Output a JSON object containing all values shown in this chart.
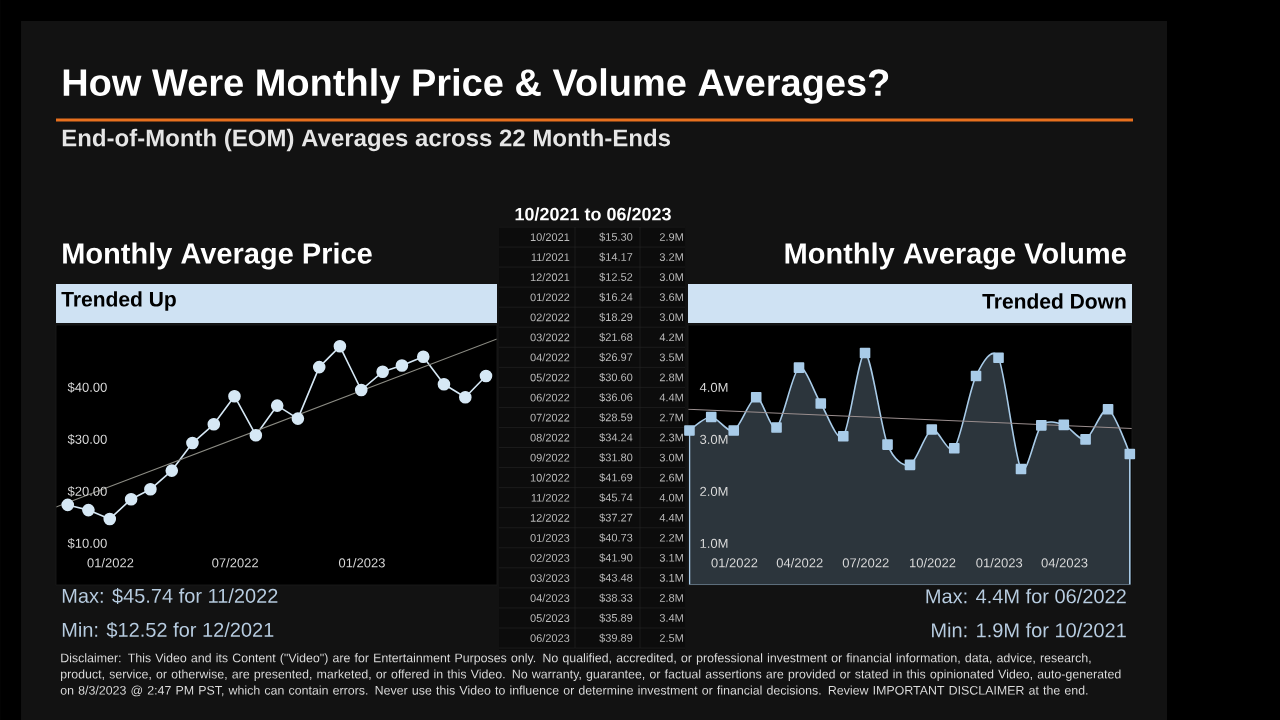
{
  "chart_data": [
    {
      "type": "other",
      "title": "How Were Monthly Price & Volume Averages?",
      "subtitle": "End-of-Month (EOM) Averages across 22 Month-Ends",
      "annotations": [
        "Disclaimer: This Video and its Content (\"Video\") are for Entertainment Purposes only. No qualified, accredited, or professional investment or financial information, data, advice, research, product, service, or otherwise, are presented, marketed, or offered in this Video. No warranty, guarantee, or factual assertions are provided or stated in this opinionated Video, auto-generated on 8/3/2023 @ 2:47 PM PST, which can contain errors. Never use this Video to influence or determine investment or financial decisions. Review IMPORTANT DISCLAIMER at the end."
      ]
    },
    {
      "type": "line",
      "title": "Monthly Average Price",
      "subtitle": "Trended Up",
      "marker": "circle",
      "x": [
        "2021-10-31",
        "2021-11-30",
        "2021-12-31",
        "2022-01-31",
        "2022-02-28",
        "2022-03-31",
        "2022-04-30",
        "2022-05-31",
        "2022-06-30",
        "2022-07-31",
        "2022-08-31",
        "2022-09-30",
        "2022-10-31",
        "2022-11-30",
        "2022-12-31",
        "2023-01-31",
        "2023-02-28",
        "2023-03-31",
        "2023-04-30",
        "2023-05-31",
        "2023-06-30"
      ],
      "series": [
        {
          "color": "#d6e8f5",
          "values": [
            17.4,
            16.4,
            14.7,
            18.5,
            20.4,
            24.0,
            29.3,
            32.9,
            38.3,
            30.8,
            36.5,
            34.0,
            43.9,
            47.9,
            39.5,
            43.0,
            44.2,
            45.9,
            40.6,
            38.1,
            42.2
          ]
        },
        {
          "type": "line",
          "marker": "none",
          "color": "#8c8c84",
          "x": [
            "2021-10-14",
            "2023-07-16"
          ],
          "values": [
            17.0,
            49.3
          ]
        }
      ],
      "xlim": [
        "2021-10-14",
        "2023-07-16"
      ],
      "ylim": [
        2,
        52
      ],
      "xticks": [
        {
          "value": "2022-01-01",
          "label": "01/2022"
        },
        {
          "value": "2022-07-01",
          "label": "07/2022"
        },
        {
          "value": "2023-01-01",
          "label": "01/2023"
        }
      ],
      "yticks": [
        {
          "value": 10,
          "label": "$10.00"
        },
        {
          "value": 20,
          "label": "$20.00"
        },
        {
          "value": 30,
          "label": "$30.00"
        },
        {
          "value": 40,
          "label": "$40.00"
        }
      ],
      "annotations": [
        "Max: $45.74 for 11/2022",
        "Min: $12.52 for 12/2021"
      ]
    },
    {
      "type": "other",
      "title": "10/2021 to 06/2023",
      "data_labels": true,
      "categories": [
        "10/2021",
        "11/2021",
        "12/2021",
        "01/2022",
        "02/2022",
        "03/2022",
        "04/2022",
        "05/2022",
        "06/2022",
        "07/2022",
        "08/2022",
        "09/2022",
        "10/2022",
        "11/2022",
        "12/2022",
        "01/2023",
        "02/2023",
        "03/2023",
        "04/2023",
        "05/2023",
        "06/2023"
      ],
      "series": [
        {
          "values": [
            15.3,
            14.17,
            12.52,
            16.24,
            18.29,
            21.68,
            26.97,
            30.6,
            36.06,
            28.59,
            34.24,
            31.8,
            41.69,
            45.74,
            37.27,
            40.73,
            41.9,
            43.48,
            38.33,
            35.89,
            39.89
          ],
          "value_labels": [
            "$15.30",
            "$14.17",
            "$12.52",
            "$16.24",
            "$18.29",
            "$21.68",
            "$26.97",
            "$30.60",
            "$36.06",
            "$28.59",
            "$34.24",
            "$31.80",
            "$41.69",
            "$45.74",
            "$37.27",
            "$40.73",
            "$41.90",
            "$43.48",
            "$38.33",
            "$35.89",
            "$39.89"
          ]
        },
        {
          "values": [
            2.9,
            3.2,
            3.0,
            3.6,
            3.0,
            4.2,
            3.5,
            2.8,
            4.4,
            2.7,
            2.3,
            3.0,
            2.6,
            4.0,
            4.4,
            2.2,
            3.1,
            3.1,
            2.8,
            3.4,
            2.5
          ],
          "value_labels": [
            "2.9M",
            "3.2M",
            "3.0M",
            "3.6M",
            "3.0M",
            "4.2M",
            "3.5M",
            "2.8M",
            "4.4M",
            "2.7M",
            "2.3M",
            "3.0M",
            "2.6M",
            "4.0M",
            "4.4M",
            "2.2M",
            "3.1M",
            "3.1M",
            "2.8M",
            "3.4M",
            "2.5M"
          ]
        }
      ]
    },
    {
      "type": "area",
      "title": "Monthly Average Volume",
      "subtitle": "Trended Down",
      "marker": "square",
      "x": [
        "2021-10-31",
        "2021-11-30",
        "2021-12-31",
        "2022-01-31",
        "2022-02-28",
        "2022-03-31",
        "2022-04-30",
        "2022-05-31",
        "2022-06-30",
        "2022-07-31",
        "2022-08-31",
        "2022-09-30",
        "2022-10-31",
        "2022-11-30",
        "2022-12-31",
        "2023-01-31",
        "2023-02-28",
        "2023-03-31",
        "2023-04-30",
        "2023-05-31",
        "2023-06-30"
      ],
      "series": [
        {
          "color": "#a8cbe8",
          "values": [
            3.17,
            3.43,
            3.17,
            3.81,
            3.23,
            4.38,
            3.69,
            3.06,
            4.66,
            2.9,
            2.51,
            3.19,
            2.83,
            4.22,
            4.57,
            2.43,
            3.27,
            3.28,
            3.0,
            3.58,
            2.72
          ]
        },
        {
          "type": "line",
          "marker": "none",
          "color": "#9b8f8f",
          "x": [
            "2021-10-29",
            "2023-07-03"
          ],
          "values": [
            3.58,
            3.21
          ]
        }
      ],
      "xlim": [
        "2021-10-29",
        "2023-07-03"
      ],
      "ylim": [
        0.2,
        5.2
      ],
      "xticks": [
        {
          "value": "2022-01-01",
          "label": "01/2022"
        },
        {
          "value": "2022-04-01",
          "label": "04/2022"
        },
        {
          "value": "2022-07-01",
          "label": "07/2022"
        },
        {
          "value": "2022-10-01",
          "label": "10/2022"
        },
        {
          "value": "2023-01-01",
          "label": "01/2023"
        },
        {
          "value": "2023-04-01",
          "label": "04/2023"
        }
      ],
      "yticks": [
        {
          "value": 1,
          "label": "1.0M"
        },
        {
          "value": 2,
          "label": "2.0M"
        },
        {
          "value": 3,
          "label": "3.0M"
        },
        {
          "value": 4,
          "label": "4.0M"
        }
      ],
      "annotations": [
        "Max: 4.4M for 06/2022",
        "Min: 1.9M for 10/2021"
      ]
    }
  ]
}
